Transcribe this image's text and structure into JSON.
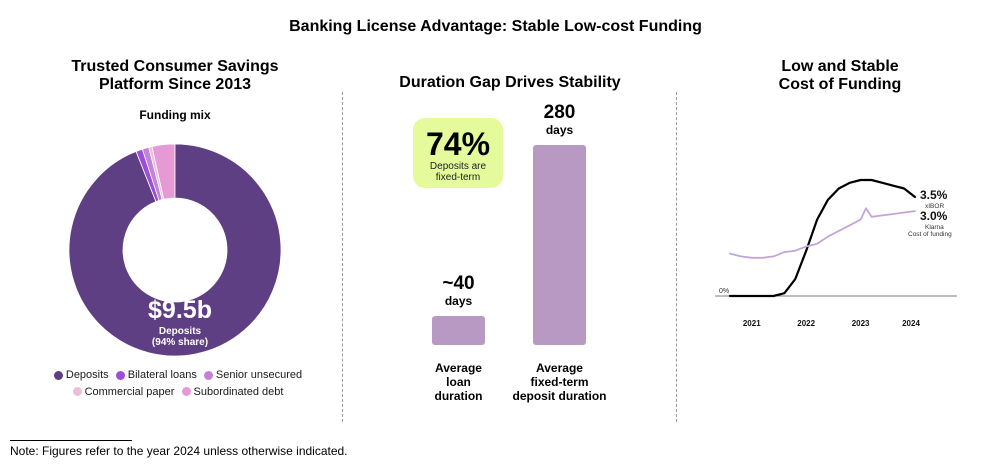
{
  "title": "Banking License Advantage: Stable Low-cost Funding",
  "panel1": {
    "title_line1": "Trusted Consumer Savings",
    "title_line2": "Platform Since 2013",
    "subtitle": "Funding mix",
    "center_value": "$9.5b",
    "center_label": "Deposits",
    "center_share": "(94% share)"
  },
  "panel2": {
    "title": "Duration Gap Drives Stability",
    "callout_value": "74%",
    "callout_line1": "Deposits are",
    "callout_line2": "fixed-term",
    "bars": [
      {
        "value_label": "~40",
        "unit": "days",
        "cat_line1": "Average",
        "cat_line2": "loan",
        "cat_line3": "duration"
      },
      {
        "value_label": "280",
        "unit": "days",
        "cat_line1": "Average",
        "cat_line2": "fixed-term",
        "cat_line3": "deposit duration"
      }
    ]
  },
  "panel3": {
    "title_line1": "Low and Stable",
    "title_line2": "Cost of Funding",
    "zero_label": "0%",
    "series1_value": "3.5%",
    "series1_name": "xIBOR",
    "series2_value": "3.0%",
    "series2_name_line1": "Klarna",
    "series2_name_line2": "Cost of funding",
    "years": [
      "2021",
      "2022",
      "2023",
      "2024"
    ]
  },
  "note": "Note: Figures refer to the year 2024 unless otherwise indicated.",
  "chart_data": [
    {
      "type": "pie",
      "title": "Funding mix",
      "categories": [
        "Deposits",
        "Bilateral loans",
        "Senior unsecured",
        "Commercial paper",
        "Subordinated debt"
      ],
      "values": [
        94,
        1,
        1,
        0.5,
        3.5
      ],
      "colors": [
        "#5f3f84",
        "#9a4fd6",
        "#c183d6",
        "#f0bdd8",
        "#e59ad6"
      ]
    },
    {
      "type": "bar",
      "title": "Duration Gap Drives Stability",
      "categories": [
        "Average loan duration",
        "Average fixed-term deposit duration"
      ],
      "values": [
        40,
        280
      ],
      "ylabel": "days",
      "ylim": [
        0,
        280
      ],
      "color": "#b899c4"
    },
    {
      "type": "line",
      "title": "Low and Stable Cost of Funding",
      "x": [
        2020.6,
        2020.8,
        2021.0,
        2021.2,
        2021.4,
        2021.6,
        2021.8,
        2022.0,
        2022.2,
        2022.4,
        2022.6,
        2022.8,
        2023.0,
        2023.1,
        2023.2,
        2023.4,
        2023.6,
        2023.8,
        2024.0
      ],
      "series": [
        {
          "name": "xIBOR",
          "color": "#000000",
          "values": [
            0.0,
            0.0,
            0.0,
            0.0,
            0.0,
            0.1,
            0.6,
            1.6,
            2.7,
            3.4,
            3.8,
            4.0,
            4.1,
            4.1,
            4.1,
            4.0,
            3.9,
            3.8,
            3.5
          ]
        },
        {
          "name": "Klarna Cost of funding",
          "color": "#c3a6d8",
          "values": [
            1.5,
            1.4,
            1.35,
            1.35,
            1.4,
            1.55,
            1.6,
            1.75,
            1.85,
            2.1,
            2.3,
            2.5,
            2.7,
            3.1,
            2.8,
            2.85,
            2.9,
            2.95,
            3.0
          ]
        }
      ],
      "xlabel": "",
      "ylabel": "",
      "ylim": [
        0,
        4.5
      ]
    }
  ]
}
